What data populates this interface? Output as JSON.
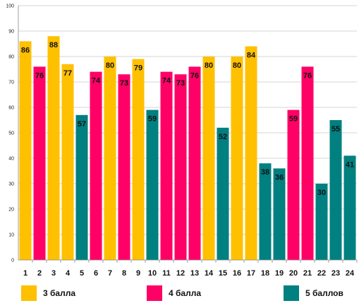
{
  "chart_data": {
    "type": "bar",
    "categories": [
      "1",
      "2",
      "3",
      "4",
      "5",
      "6",
      "7",
      "8",
      "9",
      "10",
      "11",
      "12",
      "13",
      "14",
      "15",
      "16",
      "17",
      "18",
      "19",
      "20",
      "21",
      "22",
      "23",
      "24"
    ],
    "values": [
      86,
      76,
      88,
      77,
      57,
      74,
      80,
      73,
      79,
      59,
      74,
      73,
      76,
      80,
      52,
      80,
      84,
      38,
      36,
      59,
      76,
      30,
      55,
      41
    ],
    "groups": [
      0,
      1,
      0,
      0,
      2,
      1,
      0,
      1,
      0,
      2,
      1,
      1,
      1,
      0,
      2,
      0,
      0,
      2,
      2,
      1,
      1,
      2,
      2,
      2
    ],
    "ylim": [
      0,
      100
    ],
    "yticks": [
      0,
      10,
      20,
      30,
      40,
      50,
      60,
      70,
      80,
      90,
      100
    ],
    "grid": "horizontal",
    "legend_position": "bottom",
    "series": [
      {
        "name": "3 балла",
        "color": "#FFC000"
      },
      {
        "name": "4 балла",
        "color": "#FF0066"
      },
      {
        "name": "5 баллов",
        "color": "#008080"
      }
    ]
  }
}
